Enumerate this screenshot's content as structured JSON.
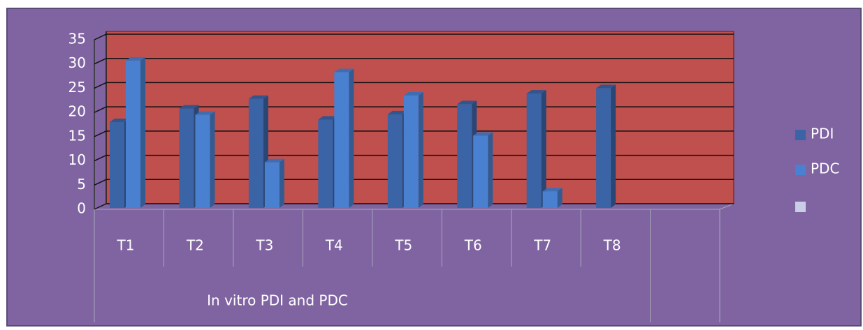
{
  "chart_data": {
    "type": "bar3d",
    "categories": [
      "T1",
      "T2",
      "T3",
      "T4",
      "T5",
      "T6",
      "T7",
      "T8",
      null
    ],
    "series": [
      {
        "name": "PDI",
        "color": "#3a64a6",
        "values": [
          18,
          20.8,
          22.8,
          18.5,
          19.6,
          21.7,
          23.9,
          25,
          null
        ]
      },
      {
        "name": "PDC",
        "color": "#4a80d0",
        "values": [
          30.7,
          19.5,
          9.7,
          28.3,
          23.5,
          15.2,
          3.7,
          null,
          null
        ]
      }
    ],
    "x_label": "In vitro PDI and PDC",
    "ylim": [
      0,
      35
    ],
    "yticks": [
      0,
      5,
      10,
      15,
      20,
      25,
      30,
      35
    ],
    "grid": true,
    "legend": "right"
  }
}
